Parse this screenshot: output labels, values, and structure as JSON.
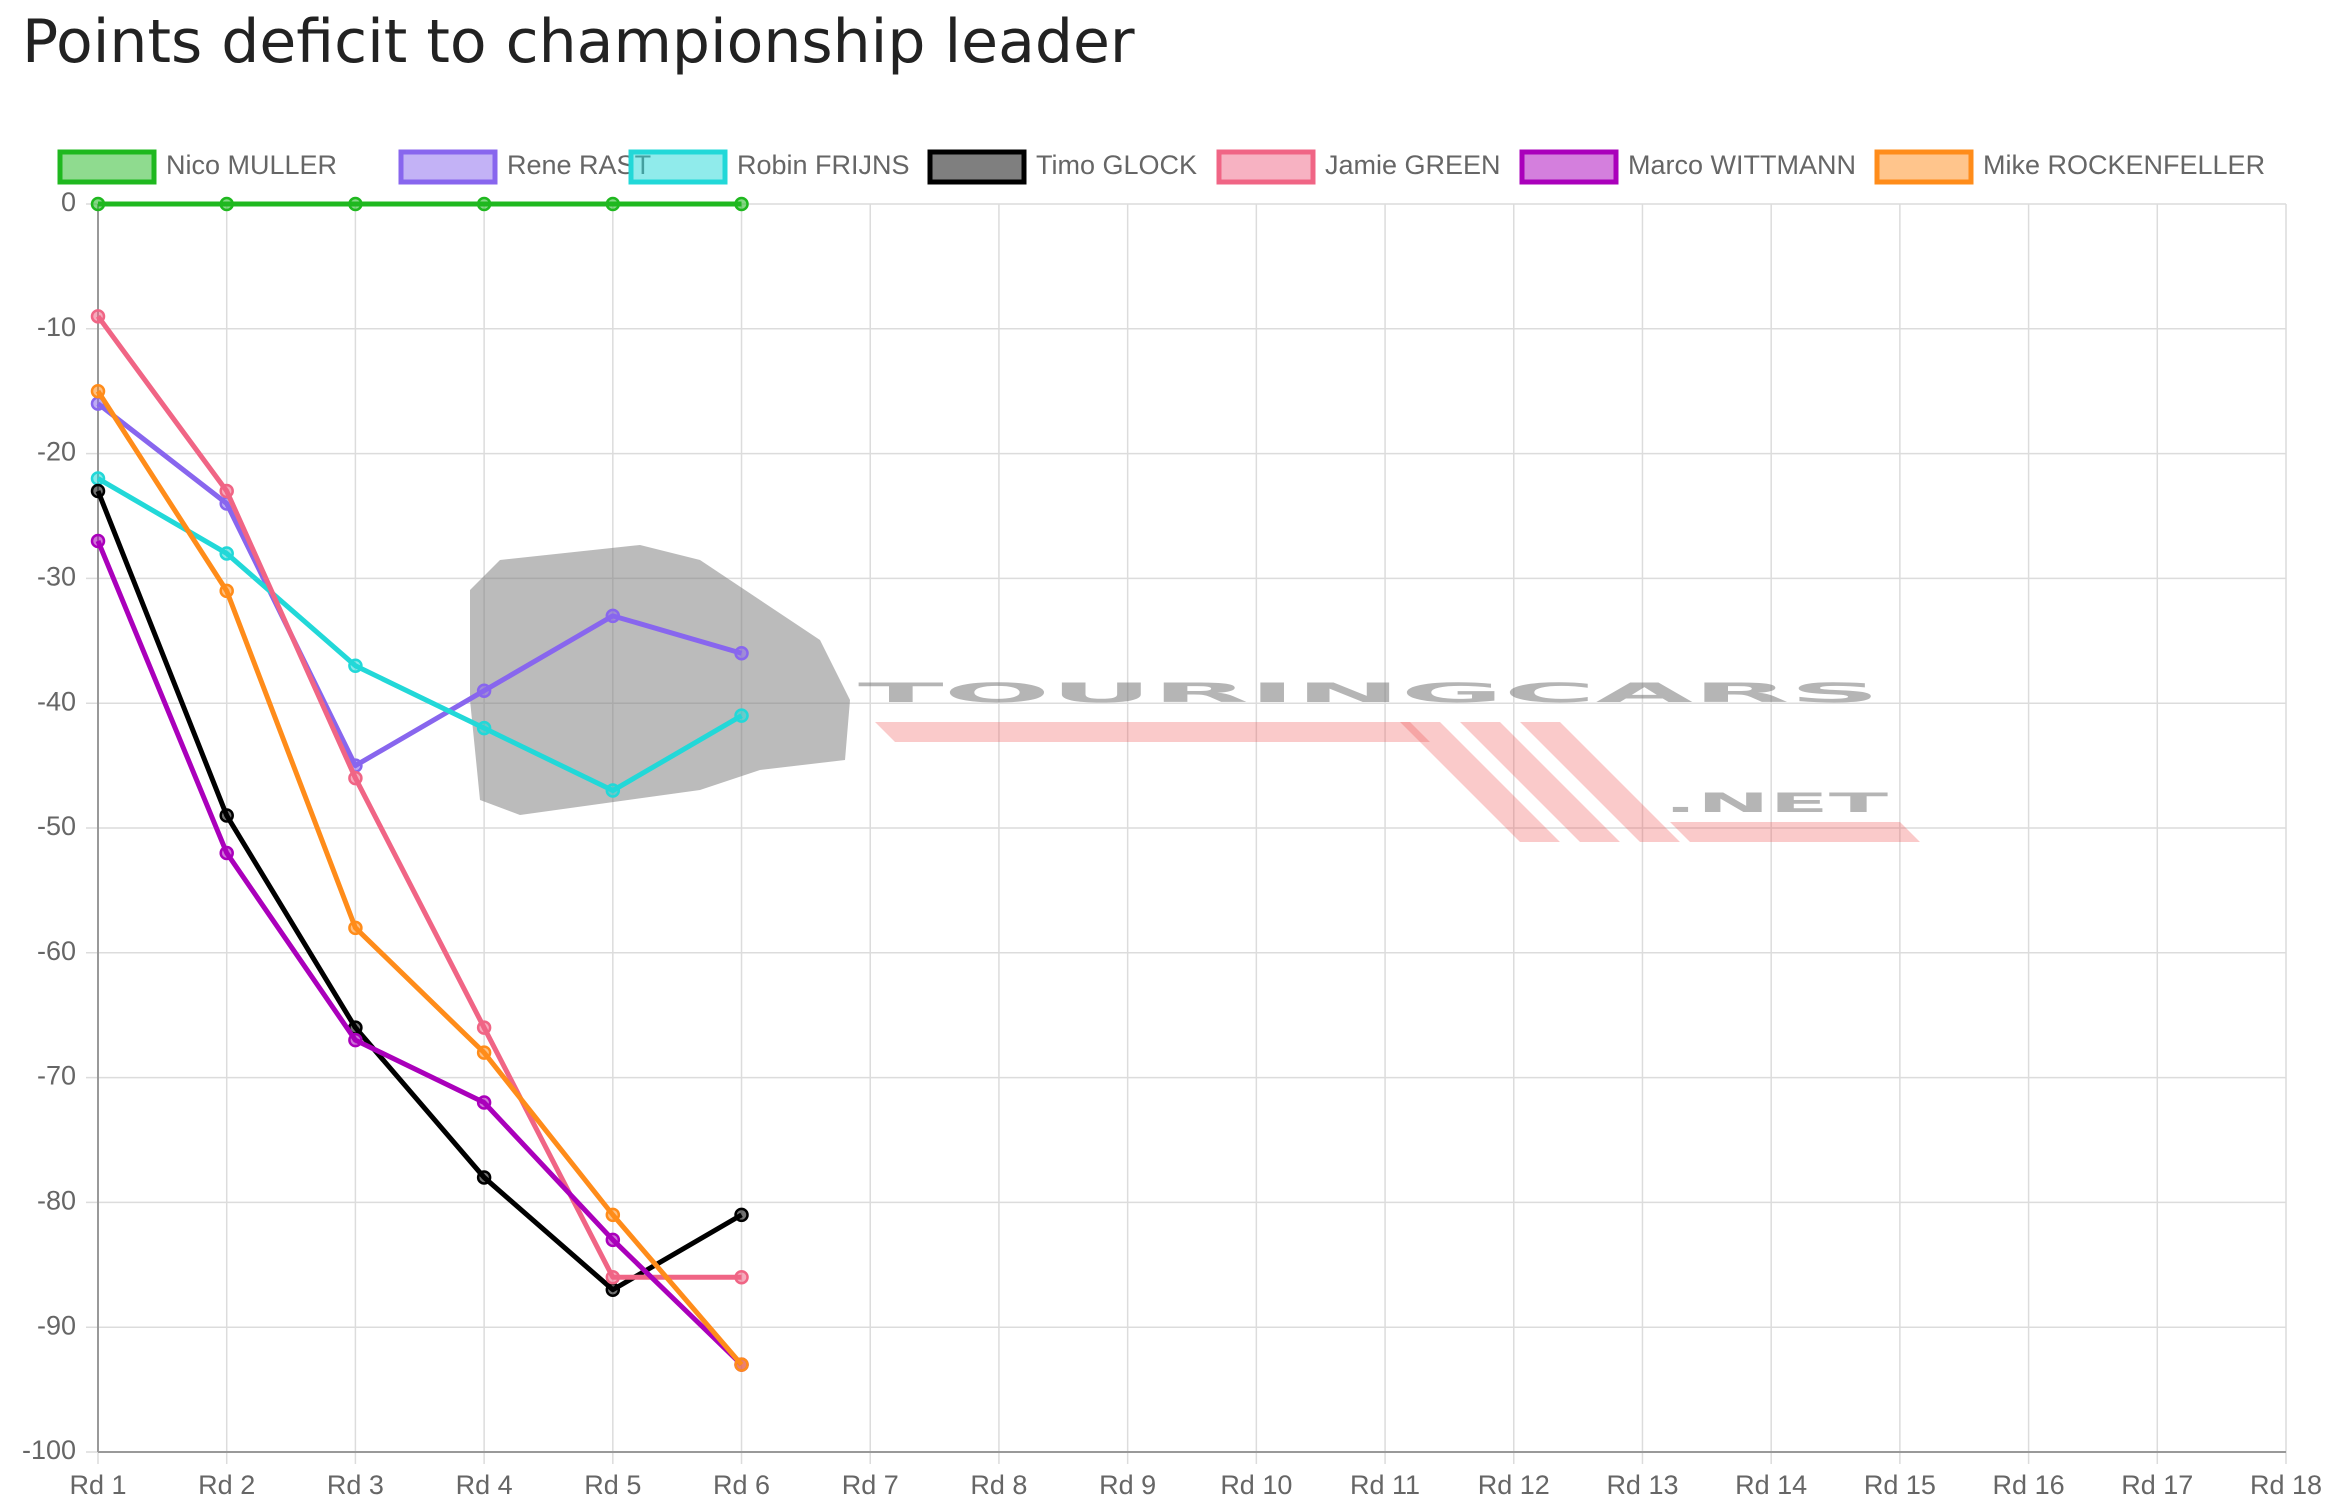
{
  "chart_data": {
    "type": "line",
    "title": "Points deficit to championship leader",
    "watermark": {
      "line1": "TOURINGCARS",
      "line2": ".NET"
    },
    "categories": [
      "Rd 1",
      "Rd 2",
      "Rd 3",
      "Rd 4",
      "Rd 5",
      "Rd 6",
      "Rd 7",
      "Rd 8",
      "Rd 9",
      "Rd 10",
      "Rd 11",
      "Rd 12",
      "Rd 13",
      "Rd 14",
      "Rd 15",
      "Rd 16",
      "Rd 17",
      "Rd 18"
    ],
    "series": [
      {
        "name": "Nico MULLER",
        "color": "#1fb81f",
        "values": [
          0,
          0,
          0,
          0,
          0,
          0,
          null,
          null,
          null,
          null,
          null,
          null,
          null,
          null,
          null,
          null,
          null,
          null
        ]
      },
      {
        "name": "Rene RAST",
        "color": "#8866ee",
        "values": [
          -16,
          -24,
          -45,
          -39,
          -33,
          -36,
          null,
          null,
          null,
          null,
          null,
          null,
          null,
          null,
          null,
          null,
          null,
          null
        ]
      },
      {
        "name": "Robin FRIJNS",
        "color": "#22d8d8",
        "values": [
          -22,
          -28,
          -37,
          -42,
          -47,
          -41,
          null,
          null,
          null,
          null,
          null,
          null,
          null,
          null,
          null,
          null,
          null,
          null
        ]
      },
      {
        "name": "Timo GLOCK",
        "color": "#000000",
        "values": [
          -23,
          -49,
          -66,
          -78,
          -87,
          -81,
          null,
          null,
          null,
          null,
          null,
          null,
          null,
          null,
          null,
          null,
          null,
          null
        ]
      },
      {
        "name": "Jamie GREEN",
        "color": "#f06585",
        "values": [
          -9,
          -23,
          -46,
          -66,
          -86,
          -86,
          null,
          null,
          null,
          null,
          null,
          null,
          null,
          null,
          null,
          null,
          null,
          null
        ]
      },
      {
        "name": "Marco WITTMANN",
        "color": "#aa00bb",
        "values": [
          -27,
          -52,
          -67,
          -72,
          -83,
          -93,
          null,
          null,
          null,
          null,
          null,
          null,
          null,
          null,
          null,
          null,
          null,
          null
        ]
      },
      {
        "name": "Mike ROCKENFELLER",
        "color": "#ff8c1a",
        "values": [
          -15,
          -31,
          -58,
          -68,
          -81,
          -93,
          null,
          null,
          null,
          null,
          null,
          null,
          null,
          null,
          null,
          null,
          null,
          null
        ]
      }
    ],
    "ylim": [
      -100,
      0
    ],
    "yticks": [
      0,
      -10,
      -20,
      -30,
      -40,
      -50,
      -60,
      -70,
      -80,
      -90,
      -100
    ],
    "grid": true,
    "legend": "top"
  }
}
